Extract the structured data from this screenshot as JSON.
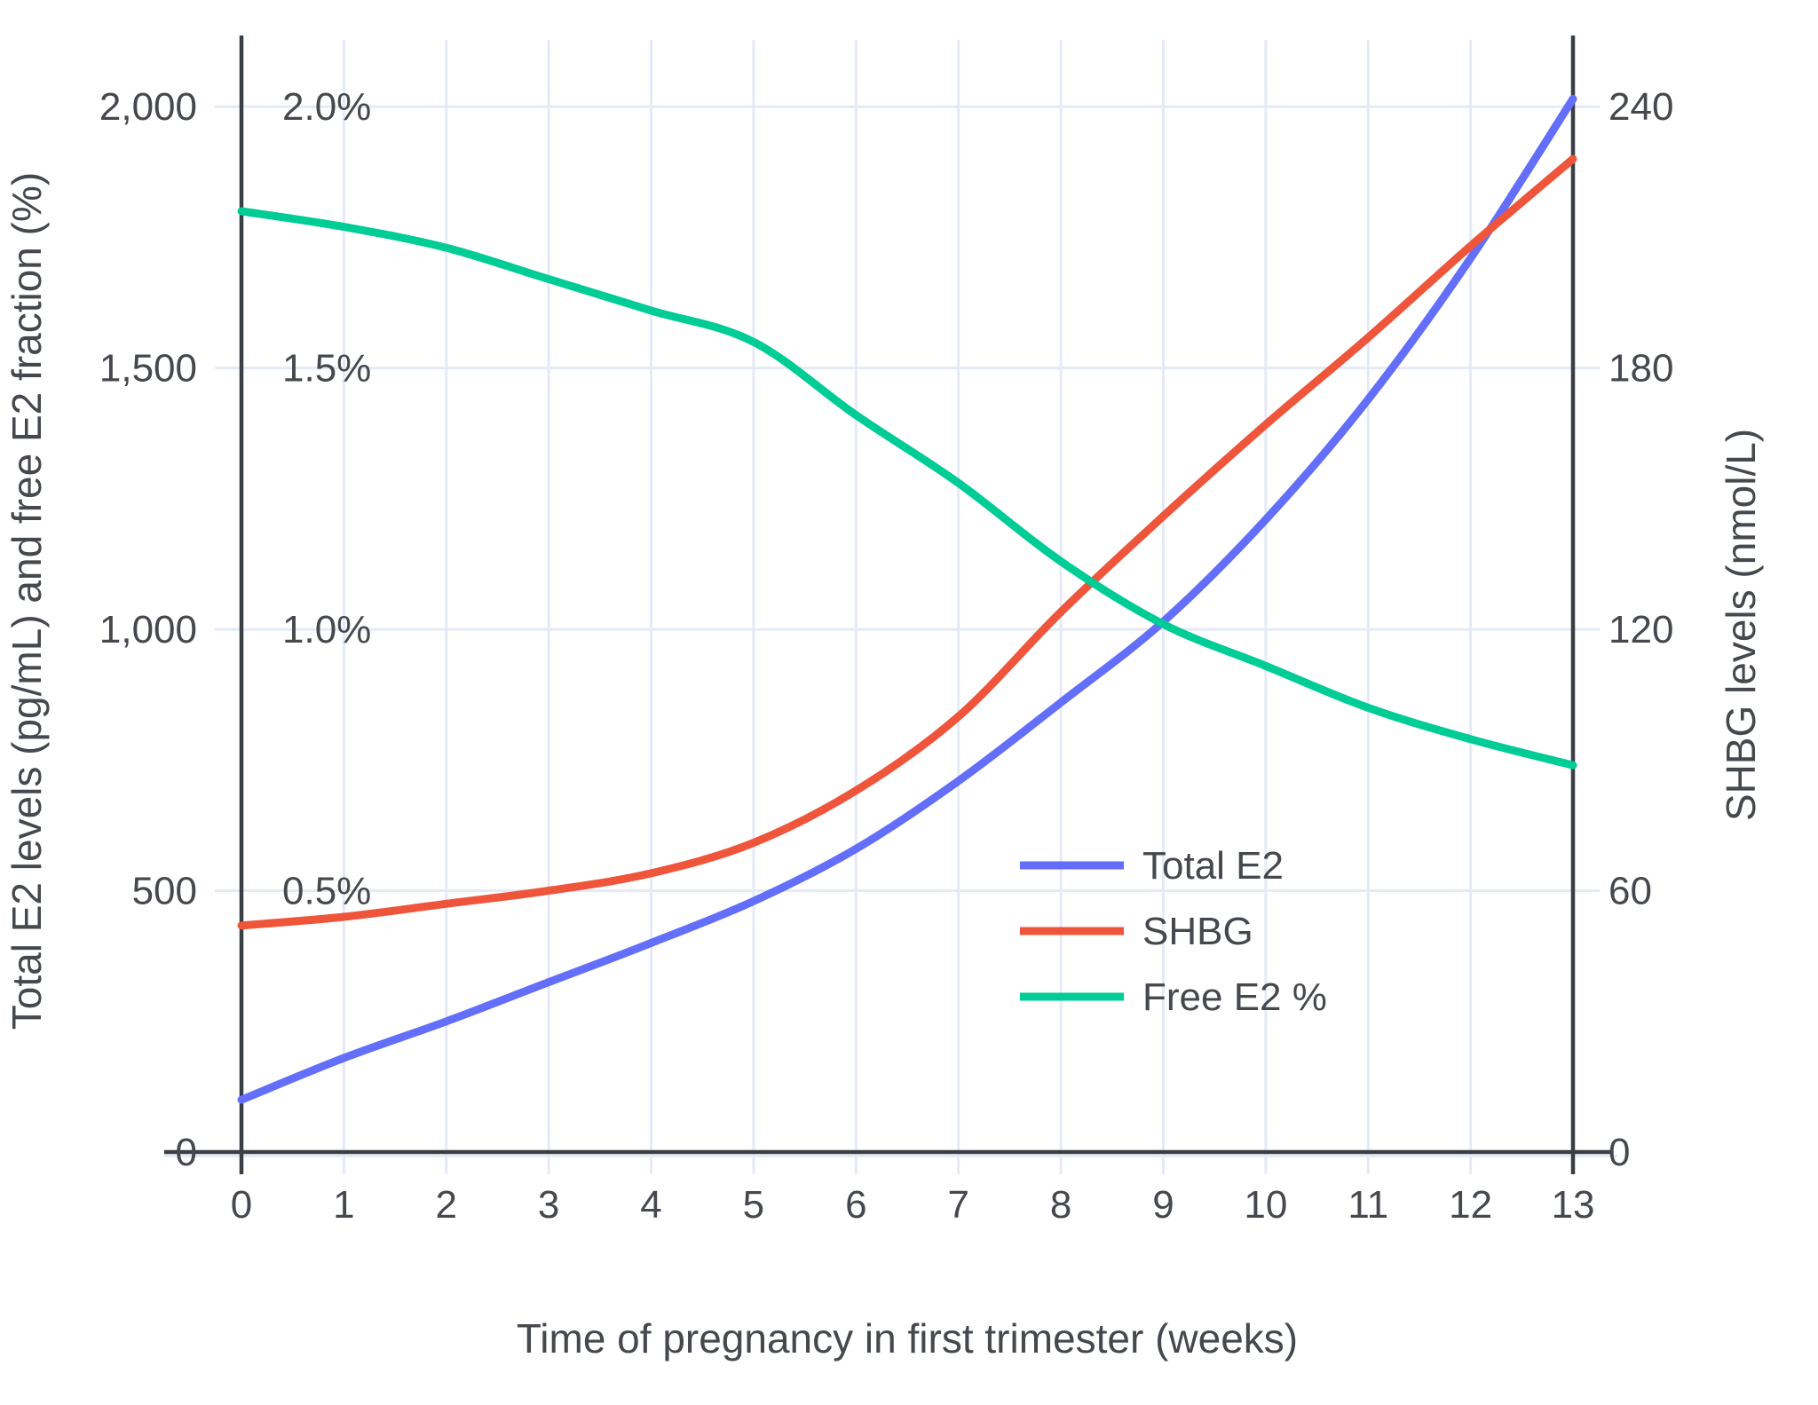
{
  "chart_data": {
    "type": "line",
    "title": "",
    "xlabel": "Time of pregnancy in first trimester (weeks)",
    "ylabel_left": "Total E2 levels (pg/mL) and free E2 fraction (%)",
    "ylabel_right": "SHBG levels (nmol/L)",
    "x": [
      0,
      1,
      2,
      3,
      4,
      5,
      6,
      7,
      8,
      9,
      10,
      11,
      12,
      13
    ],
    "x_ticks": [
      "0",
      "1",
      "2",
      "3",
      "4",
      "5",
      "6",
      "7",
      "8",
      "9",
      "10",
      "11",
      "12",
      "13"
    ],
    "xlim": [
      0,
      13
    ],
    "left_axis": {
      "range": [
        0,
        2000
      ],
      "tick_values": [
        0,
        500,
        1000,
        1500,
        2000
      ],
      "tick_labels": [
        "0",
        "500",
        "1,000",
        "1,500",
        "2,000"
      ]
    },
    "pct_axis": {
      "range": [
        0,
        2.0
      ],
      "tick_values": [
        0.5,
        1.0,
        1.5,
        2.0
      ],
      "tick_labels": [
        "0.5%",
        "1.0%",
        "1.5%",
        "2.0%"
      ]
    },
    "right_axis": {
      "range": [
        0,
        240
      ],
      "tick_values": [
        0,
        60,
        120,
        180,
        240
      ],
      "tick_labels": [
        "0",
        "60",
        "120",
        "180",
        "240"
      ]
    },
    "grid": true,
    "legend_position": "middle-right",
    "series": [
      {
        "name": "Total E2",
        "axis": "left",
        "units": "pg/mL",
        "color": "#636EFA",
        "values": [
          100,
          180,
          250,
          325,
          400,
          480,
          580,
          710,
          860,
          1015,
          1210,
          1440,
          1710,
          2015
        ]
      },
      {
        "name": "SHBG",
        "axis": "right",
        "units": "nmol/L",
        "color": "#EF553B",
        "values": [
          52,
          54,
          57,
          60,
          64,
          71,
          83,
          100,
          124,
          146,
          167,
          187,
          208,
          228
        ]
      },
      {
        "name": "Free E2 %",
        "axis": "pct",
        "units": "%",
        "color": "#00CC96",
        "values": [
          1.8,
          1.77,
          1.73,
          1.67,
          1.61,
          1.55,
          1.41,
          1.28,
          1.13,
          1.01,
          0.93,
          0.85,
          0.79,
          0.74
        ]
      }
    ]
  },
  "colors": {
    "grid": "#e4eaf6",
    "axis": "#3a3f45",
    "text": "#45484d",
    "background": "#ffffff"
  }
}
